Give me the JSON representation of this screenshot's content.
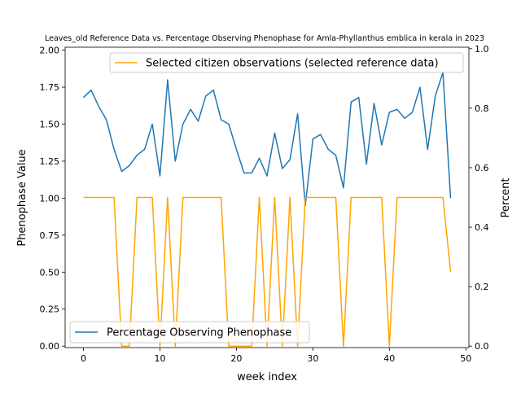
{
  "chart_data": {
    "type": "line",
    "title": "Leaves_old Reference Data vs. Percentage Observing Phenophase for Amla-Phyllanthus emblica in kerala in 2023",
    "xlabel": "week index",
    "ylabel_left": "Phenophase Value",
    "ylabel_right": "Percent",
    "xlim": [
      -2.4,
      50.4
    ],
    "ylim_left": [
      -0.01,
      2.02
    ],
    "ylim_right": [
      -0.005,
      1.005
    ],
    "x_ticks": [
      0,
      10,
      20,
      30,
      40,
      50
    ],
    "x_tick_labels": [
      "0",
      "10",
      "20",
      "30",
      "40",
      "50"
    ],
    "y_left_ticks": [
      0,
      0.25,
      0.5,
      0.75,
      1.0,
      1.25,
      1.5,
      1.75,
      2.0
    ],
    "y_left_tick_labels": [
      "0.00",
      "0.25",
      "0.50",
      "0.75",
      "1.00",
      "1.25",
      "1.50",
      "1.75",
      "2.00"
    ],
    "y_right_ticks": [
      0,
      0.2,
      0.4,
      0.6,
      0.8,
      1.0
    ],
    "y_right_tick_labels": [
      "0.0",
      "0.2",
      "0.4",
      "0.6",
      "0.8",
      "1.0"
    ],
    "grid": false,
    "series": [
      {
        "name": "Percentage Observing Phenophase",
        "axis": "left",
        "color": "#1f77b4",
        "x": [
          0,
          1,
          2,
          3,
          4,
          5,
          6,
          7,
          8,
          9,
          10,
          11,
          12,
          13,
          14,
          15,
          16,
          17,
          18,
          19,
          20,
          21,
          22,
          23,
          24,
          25,
          26,
          27,
          28,
          29,
          30,
          31,
          32,
          33,
          34,
          35,
          36,
          37,
          38,
          39,
          40,
          41,
          42,
          43,
          44,
          45,
          46,
          47,
          48
        ],
        "values": [
          1.68,
          1.73,
          1.62,
          1.53,
          1.33,
          1.18,
          1.22,
          1.29,
          1.33,
          1.5,
          1.15,
          1.8,
          1.25,
          1.5,
          1.6,
          1.52,
          1.69,
          1.73,
          1.53,
          1.5,
          1.33,
          1.17,
          1.17,
          1.27,
          1.15,
          1.44,
          1.2,
          1.26,
          1.57,
          0.95,
          1.4,
          1.43,
          1.33,
          1.29,
          1.07,
          1.65,
          1.68,
          1.23,
          1.64,
          1.36,
          1.58,
          1.6,
          1.54,
          1.58,
          1.75,
          1.33,
          1.69,
          1.85,
          1.0
        ]
      },
      {
        "name": "Selected citizen observations (selected reference data)",
        "axis": "right",
        "color": "#ffa500",
        "x": [
          0,
          1,
          2,
          3,
          4,
          5,
          6,
          7,
          8,
          9,
          10,
          11,
          12,
          13,
          14,
          15,
          16,
          17,
          18,
          19,
          20,
          21,
          22,
          23,
          24,
          25,
          26,
          27,
          28,
          29,
          30,
          31,
          32,
          33,
          34,
          35,
          36,
          37,
          38,
          39,
          40,
          41,
          42,
          43,
          44,
          45,
          46,
          47,
          48
        ],
        "values": [
          0.5,
          0.5,
          0.5,
          0.5,
          0.5,
          0,
          0,
          0.5,
          0.5,
          0.5,
          0,
          0.5,
          0,
          0.5,
          0.5,
          0.5,
          0.5,
          0.5,
          0.5,
          0,
          0,
          0,
          0,
          0.5,
          0,
          0.5,
          0,
          0.5,
          0,
          0.5,
          0.5,
          0.5,
          0.5,
          0.5,
          0,
          0.5,
          0.5,
          0.5,
          0.5,
          0.5,
          0,
          0.5,
          0.5,
          0.5,
          0.5,
          0.5,
          0.5,
          0.5,
          0.25
        ]
      }
    ],
    "legends": [
      {
        "label": "Selected citizen observations (selected reference data)",
        "placement": "upper right",
        "color": "#ffa500"
      },
      {
        "label": "Percentage Observing Phenophase",
        "placement": "lower left",
        "color": "#1f77b4"
      }
    ]
  }
}
